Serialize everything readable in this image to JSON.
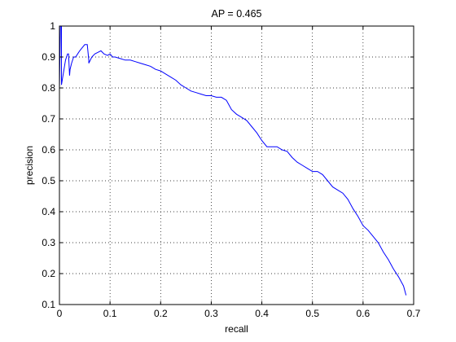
{
  "chart_data": {
    "type": "line",
    "title": "AP = 0.465",
    "xlabel": "recall",
    "ylabel": "precision",
    "xlim": [
      0,
      0.7
    ],
    "ylim": [
      0.1,
      1
    ],
    "x_ticks": [
      "0",
      "0.1",
      "0.2",
      "0.3",
      "0.4",
      "0.5",
      "0.6",
      "0.7"
    ],
    "y_ticks": [
      "0.1",
      "0.2",
      "0.3",
      "0.4",
      "0.5",
      "0.6",
      "0.7",
      "0.8",
      "0.9",
      "1"
    ],
    "grid": true,
    "legend": "none",
    "colors": {
      "series": "#0000ff",
      "axes": "#000000",
      "grid": "#000000",
      "background": "#ffffff"
    },
    "series": [
      {
        "x": [
          0,
          0.002,
          0.004,
          0.004,
          0.006,
          0.008,
          0.01,
          0.012,
          0.014,
          0.016,
          0.018,
          0.02,
          0.021,
          0.024,
          0.028,
          0.032,
          0.036,
          0.04,
          0.045,
          0.05,
          0.055,
          0.058,
          0.058,
          0.064,
          0.07,
          0.076,
          0.082,
          0.088,
          0.095,
          0.1,
          0.105,
          0.11,
          0.12,
          0.13,
          0.14,
          0.15,
          0.16,
          0.17,
          0.18,
          0.19,
          0.2,
          0.21,
          0.22,
          0.23,
          0.24,
          0.25,
          0.26,
          0.27,
          0.28,
          0.29,
          0.3,
          0.31,
          0.32,
          0.33,
          0.34,
          0.35,
          0.36,
          0.37,
          0.38,
          0.39,
          0.4,
          0.41,
          0.42,
          0.43,
          0.44,
          0.45,
          0.46,
          0.47,
          0.48,
          0.49,
          0.5,
          0.51,
          0.52,
          0.53,
          0.54,
          0.55,
          0.56,
          0.57,
          0.58,
          0.59,
          0.6,
          0.61,
          0.62,
          0.63,
          0.64,
          0.65,
          0.66,
          0.67,
          0.68,
          0.685
        ],
        "y": [
          0.8,
          1,
          1,
          0.81,
          0.83,
          0.85,
          0.87,
          0.89,
          0.9,
          0.91,
          0.91,
          0.84,
          0.86,
          0.88,
          0.9,
          0.9,
          0.91,
          0.92,
          0.93,
          0.94,
          0.94,
          0.89,
          0.88,
          0.9,
          0.91,
          0.915,
          0.92,
          0.91,
          0.905,
          0.91,
          0.9,
          0.9,
          0.895,
          0.89,
          0.89,
          0.885,
          0.88,
          0.875,
          0.87,
          0.86,
          0.855,
          0.845,
          0.835,
          0.825,
          0.81,
          0.8,
          0.79,
          0.785,
          0.78,
          0.775,
          0.775,
          0.77,
          0.77,
          0.76,
          0.73,
          0.715,
          0.705,
          0.695,
          0.675,
          0.655,
          0.63,
          0.61,
          0.61,
          0.61,
          0.6,
          0.595,
          0.575,
          0.56,
          0.55,
          0.54,
          0.53,
          0.53,
          0.52,
          0.5,
          0.48,
          0.47,
          0.46,
          0.44,
          0.41,
          0.385,
          0.355,
          0.34,
          0.32,
          0.3,
          0.27,
          0.245,
          0.215,
          0.19,
          0.16,
          0.13
        ]
      }
    ]
  }
}
